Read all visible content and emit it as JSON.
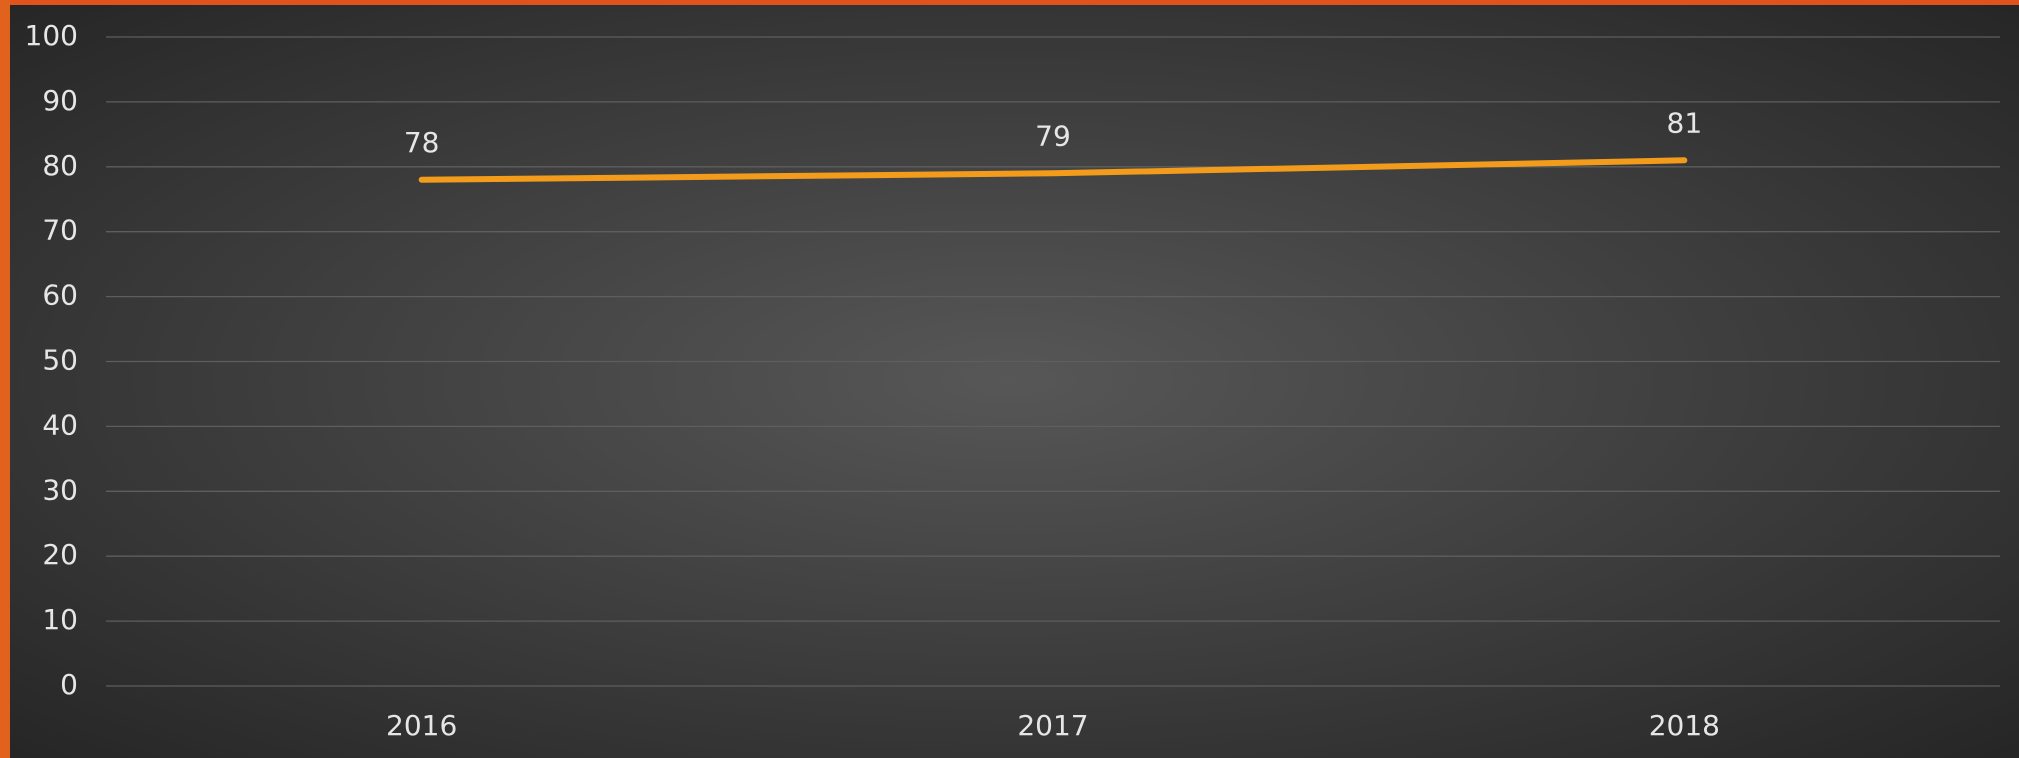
{
  "chart_data": {
    "type": "line",
    "categories": [
      "2016",
      "2017",
      "2018"
    ],
    "values": [
      78,
      79,
      81
    ],
    "color": "#f39c1c",
    "ylim": [
      0,
      100
    ],
    "yticks": [
      0,
      10,
      20,
      30,
      40,
      50,
      60,
      70,
      80,
      90,
      100
    ],
    "grid": true,
    "data_labels": true
  }
}
